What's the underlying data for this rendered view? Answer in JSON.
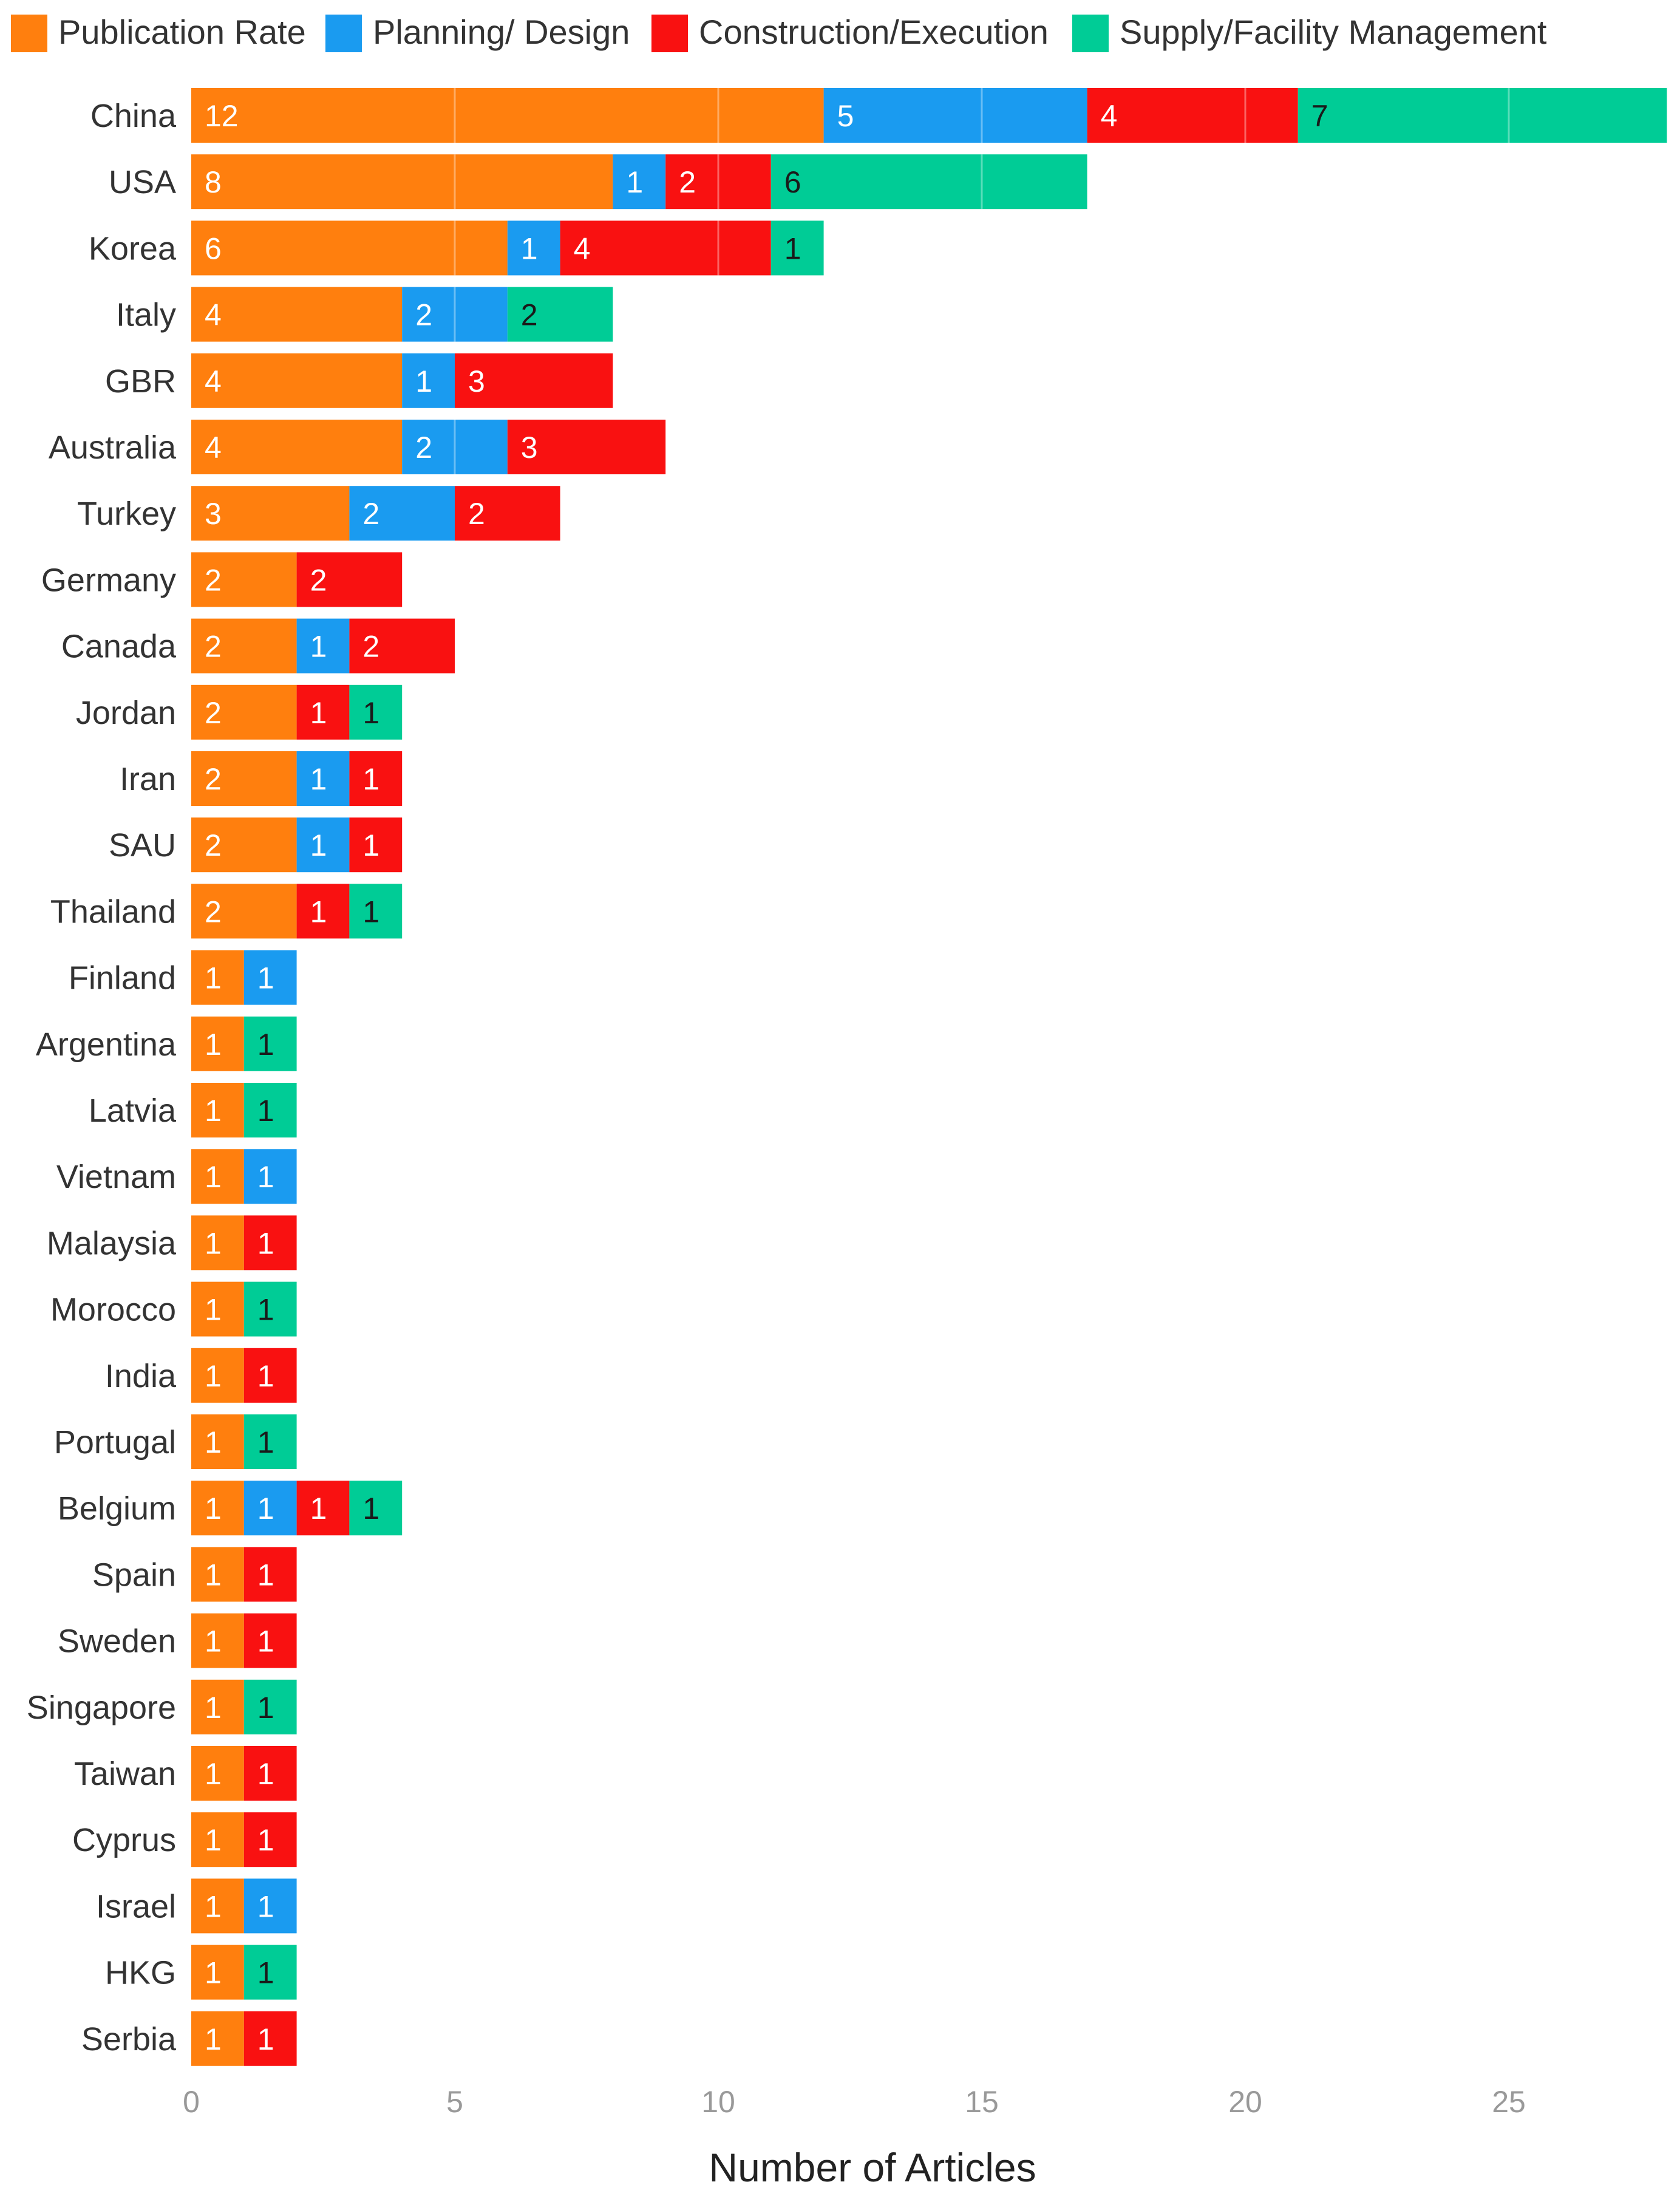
{
  "chart_data": {
    "type": "bar",
    "orientation": "horizontal",
    "stacked": true,
    "title": "",
    "xlabel": "Number of Articles",
    "ylabel": "",
    "xlim": [
      0,
      28
    ],
    "x_ticks": [
      0,
      5,
      10,
      15,
      20,
      25
    ],
    "grid": false,
    "legend_position": "top",
    "categories": [
      "China",
      "USA",
      "Korea",
      "Italy",
      "GBR",
      "Australia",
      "Turkey",
      "Germany",
      "Canada",
      "Jordan",
      "Iran",
      "SAU",
      "Thailand",
      "Finland",
      "Argentina",
      "Latvia",
      "Vietnam",
      "Malaysia",
      "Morocco",
      "India",
      "Portugal",
      "Belgium",
      "Spain",
      "Sweden",
      "Singapore",
      "Taiwan",
      "Cyprus",
      "Israel",
      "HKG",
      "Serbia"
    ],
    "series": [
      {
        "name": "Publication Rate",
        "color": "#ff7f0e",
        "label_color": "#ffffff",
        "values": [
          12,
          8,
          6,
          4,
          4,
          4,
          3,
          2,
          2,
          2,
          2,
          2,
          2,
          1,
          1,
          1,
          1,
          1,
          1,
          1,
          1,
          1,
          1,
          1,
          1,
          1,
          1,
          1,
          1,
          1
        ]
      },
      {
        "name": "Planning/ Design",
        "color": "#1a9bf0",
        "label_color": "#ffffff",
        "values": [
          5,
          1,
          1,
          2,
          1,
          2,
          2,
          0,
          1,
          0,
          1,
          1,
          0,
          1,
          0,
          0,
          1,
          0,
          0,
          0,
          0,
          1,
          0,
          0,
          0,
          0,
          0,
          1,
          0,
          0
        ]
      },
      {
        "name": "Construction/Execution",
        "color": "#f91111",
        "label_color": "#ffffff",
        "values": [
          4,
          2,
          4,
          0,
          3,
          3,
          2,
          2,
          2,
          1,
          1,
          1,
          1,
          0,
          0,
          0,
          0,
          1,
          0,
          1,
          0,
          1,
          1,
          1,
          0,
          1,
          1,
          0,
          0,
          1
        ]
      },
      {
        "name": "Supply/Facility Management",
        "color": "#00cc96",
        "label_color": "#1a1a1a",
        "values": [
          7,
          6,
          1,
          2,
          0,
          0,
          0,
          0,
          0,
          1,
          0,
          0,
          1,
          0,
          1,
          1,
          0,
          0,
          1,
          0,
          1,
          1,
          0,
          0,
          1,
          0,
          0,
          0,
          1,
          0
        ]
      }
    ]
  }
}
